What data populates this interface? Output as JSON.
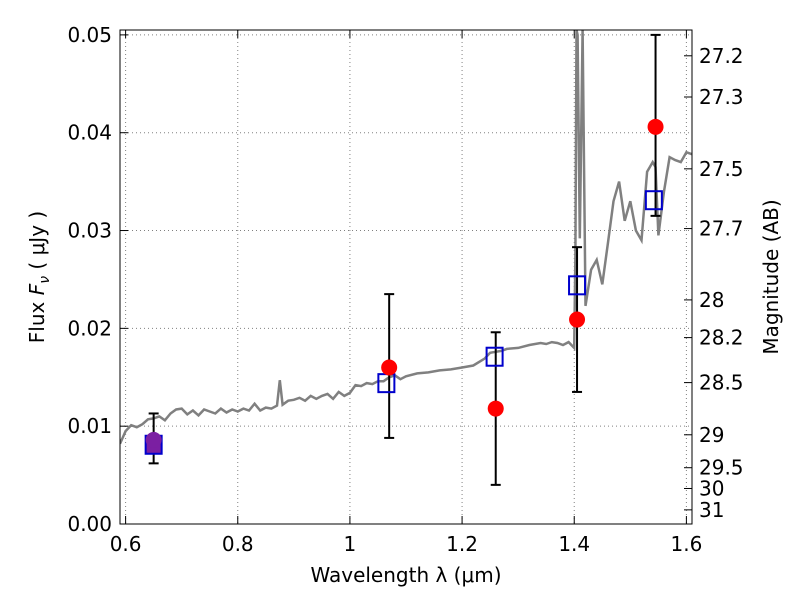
{
  "chart_data": {
    "type": "scatter",
    "xlabel": "Wavelength  λ (μm)",
    "ylabel_left_text": "Flux",
    "ylabel_left_symbol": "F",
    "ylabel_left_subscript": "ν",
    "ylabel_left_unit": "( μJy )",
    "ylabel_right": "Magnitude (AB)",
    "xlim": [
      0.59,
      1.61
    ],
    "ylim": [
      0.0,
      0.0505
    ],
    "grid": true,
    "xticks": [
      "0.6",
      "0.8",
      "1",
      "1.2",
      "1.4",
      "1.6"
    ],
    "yticks": [
      "0.00",
      "0.01",
      "0.02",
      "0.03",
      "0.04",
      "0.05"
    ],
    "magnitude_ticks": [
      "27.2",
      "27.3",
      "27.5",
      "27.7",
      "28",
      "28.2",
      "28.5",
      "29",
      "29.5",
      "30",
      "31"
    ],
    "colors": {
      "spectrum": "#808080",
      "observed": "#ff0000",
      "model": "#0000cc",
      "overlap_fill": "#7b1fa2",
      "errorbar": "#000000",
      "grid": "#808080"
    },
    "series": [
      {
        "kind": "line",
        "x": [
          0.59,
          0.6,
          0.61,
          0.62,
          0.63,
          0.64,
          0.65,
          0.66,
          0.67,
          0.68,
          0.69,
          0.7,
          0.71,
          0.72,
          0.73,
          0.74,
          0.75,
          0.76,
          0.77,
          0.78,
          0.79,
          0.8,
          0.81,
          0.82,
          0.83,
          0.84,
          0.85,
          0.86,
          0.87,
          0.875,
          0.88,
          0.89,
          0.9,
          0.91,
          0.92,
          0.93,
          0.94,
          0.95,
          0.96,
          0.97,
          0.98,
          0.99,
          1.0,
          1.01,
          1.02,
          1.03,
          1.04,
          1.05,
          1.06,
          1.07,
          1.08,
          1.09,
          1.1,
          1.12,
          1.14,
          1.16,
          1.18,
          1.2,
          1.22,
          1.24,
          1.25,
          1.26,
          1.27,
          1.28,
          1.3,
          1.32,
          1.34,
          1.35,
          1.36,
          1.37,
          1.38,
          1.39,
          1.4,
          1.402,
          1.404,
          1.406,
          1.41,
          1.415,
          1.42,
          1.43,
          1.44,
          1.45,
          1.46,
          1.47,
          1.48,
          1.49,
          1.5,
          1.505,
          1.51,
          1.52,
          1.53,
          1.54,
          1.545,
          1.55,
          1.56,
          1.57,
          1.58,
          1.59,
          1.6,
          1.61
        ],
        "values": [
          0.0082,
          0.0095,
          0.0101,
          0.0099,
          0.0102,
          0.0107,
          0.0108,
          0.011,
          0.0106,
          0.0113,
          0.0117,
          0.0118,
          0.0112,
          0.0116,
          0.0111,
          0.0117,
          0.0115,
          0.0113,
          0.0118,
          0.0114,
          0.0117,
          0.0115,
          0.0118,
          0.0116,
          0.0123,
          0.0116,
          0.0119,
          0.0118,
          0.0121,
          0.0147,
          0.0122,
          0.0126,
          0.0127,
          0.0129,
          0.0126,
          0.0131,
          0.0128,
          0.0131,
          0.0133,
          0.0128,
          0.0135,
          0.0131,
          0.0134,
          0.0142,
          0.0141,
          0.0144,
          0.0143,
          0.0146,
          0.0146,
          0.015,
          0.0152,
          0.0148,
          0.0151,
          0.0154,
          0.0155,
          0.0157,
          0.0158,
          0.016,
          0.0162,
          0.0169,
          0.0175,
          0.0176,
          0.0177,
          0.0179,
          0.018,
          0.0183,
          0.0185,
          0.0184,
          0.0186,
          0.0185,
          0.0183,
          0.0186,
          0.018,
          0.0275,
          0.0505,
          0.05,
          0.0292,
          0.0505,
          0.0223,
          0.026,
          0.027,
          0.0245,
          0.0287,
          0.033,
          0.035,
          0.031,
          0.033,
          0.0315,
          0.03,
          0.029,
          0.036,
          0.037,
          0.0365,
          0.0295,
          0.034,
          0.0375,
          0.0372,
          0.037,
          0.038,
          0.0378
        ]
      },
      {
        "kind": "observed",
        "x": [
          0.65,
          1.07,
          1.26,
          1.405,
          1.545
        ],
        "values": [
          0.0086,
          0.016,
          0.0118,
          0.0209,
          0.0406
        ],
        "err_low": [
          0.0062,
          0.0088,
          0.004,
          0.0135,
          0.0315
        ],
        "err_high": [
          0.0113,
          0.0235,
          0.0196,
          0.0283,
          0.05
        ]
      },
      {
        "kind": "model",
        "x": [
          0.65,
          1.065,
          1.258,
          1.405,
          1.542
        ],
        "values": [
          0.0081,
          0.0144,
          0.0171,
          0.0244,
          0.0331
        ]
      }
    ]
  }
}
